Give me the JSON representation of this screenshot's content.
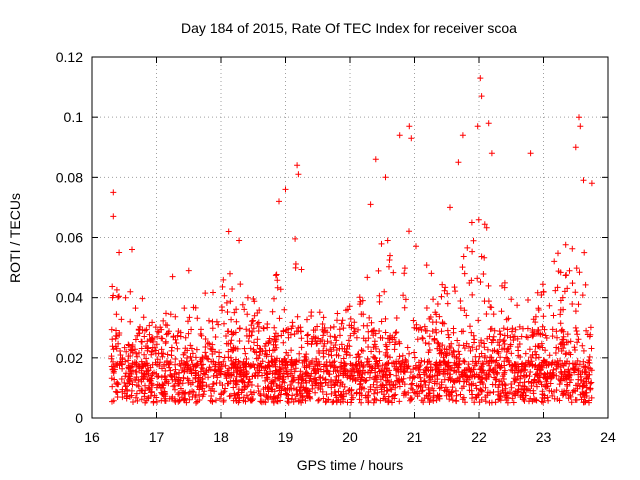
{
  "chart_data": {
    "type": "scatter",
    "title": "Day 184 of 2015, Rate Of TEC Index for receiver scoa",
    "xlabel": "GPS time / hours",
    "ylabel": "ROTI / TECUs",
    "xlim": [
      16,
      24
    ],
    "ylim": [
      0,
      0.12
    ],
    "xticks": [
      "16",
      "17",
      "18",
      "19",
      "20",
      "21",
      "22",
      "23",
      "24"
    ],
    "yticks": [
      "0",
      "0.02",
      "0.04",
      "0.06",
      "0.08",
      "0.1",
      "0.12"
    ],
    "grid": true,
    "marker": "+",
    "color": "#ff0000",
    "series": [
      {
        "name": "ROTI",
        "envelope": {
          "x": [
            16.3,
            16.5,
            16.7,
            17.0,
            17.3,
            17.6,
            17.9,
            18.1,
            18.4,
            18.7,
            18.95,
            19.15,
            19.35,
            19.6,
            19.9,
            20.2,
            20.5,
            20.8,
            20.95,
            21.2,
            21.5,
            21.8,
            22.0,
            22.2,
            22.5,
            22.8,
            23.0,
            23.3,
            23.55,
            23.75
          ],
          "y": [
            0.045,
            0.04,
            0.045,
            0.03,
            0.04,
            0.04,
            0.045,
            0.05,
            0.045,
            0.035,
            0.06,
            0.065,
            0.04,
            0.035,
            0.035,
            0.045,
            0.06,
            0.065,
            0.075,
            0.05,
            0.045,
            0.055,
            0.08,
            0.055,
            0.04,
            0.04,
            0.045,
            0.06,
            0.065,
            0.055
          ]
        },
        "highlights": [
          {
            "x": 16.33,
            "y": 0.075
          },
          {
            "x": 16.33,
            "y": 0.067
          },
          {
            "x": 16.42,
            "y": 0.055
          },
          {
            "x": 16.62,
            "y": 0.056
          },
          {
            "x": 17.25,
            "y": 0.047
          },
          {
            "x": 17.5,
            "y": 0.049
          },
          {
            "x": 18.12,
            "y": 0.062
          },
          {
            "x": 18.28,
            "y": 0.059
          },
          {
            "x": 18.9,
            "y": 0.072
          },
          {
            "x": 19.0,
            "y": 0.076
          },
          {
            "x": 19.18,
            "y": 0.084
          },
          {
            "x": 19.2,
            "y": 0.081
          },
          {
            "x": 20.32,
            "y": 0.071
          },
          {
            "x": 20.4,
            "y": 0.086
          },
          {
            "x": 20.55,
            "y": 0.08
          },
          {
            "x": 20.77,
            "y": 0.094
          },
          {
            "x": 20.92,
            "y": 0.097
          },
          {
            "x": 20.95,
            "y": 0.093
          },
          {
            "x": 21.55,
            "y": 0.07
          },
          {
            "x": 21.68,
            "y": 0.085
          },
          {
            "x": 21.75,
            "y": 0.094
          },
          {
            "x": 21.98,
            "y": 0.097
          },
          {
            "x": 22.02,
            "y": 0.113
          },
          {
            "x": 22.04,
            "y": 0.107
          },
          {
            "x": 22.15,
            "y": 0.098
          },
          {
            "x": 22.2,
            "y": 0.088
          },
          {
            "x": 22.8,
            "y": 0.088
          },
          {
            "x": 23.5,
            "y": 0.09
          },
          {
            "x": 23.55,
            "y": 0.1
          },
          {
            "x": 23.57,
            "y": 0.097
          },
          {
            "x": 23.62,
            "y": 0.079
          },
          {
            "x": 23.75,
            "y": 0.078
          }
        ]
      }
    ]
  }
}
